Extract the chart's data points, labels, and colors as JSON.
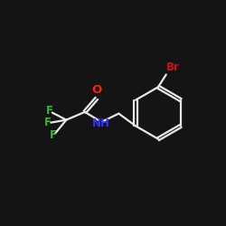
{
  "background_color": "#141414",
  "bond_color": "#e8e8e8",
  "atom_colors": {
    "O": "#ff2200",
    "N": "#3333ff",
    "F": "#33bb33",
    "Br": "#cc1111"
  },
  "figsize": [
    2.5,
    2.5
  ],
  "dpi": 100,
  "xlim": [
    0,
    10
  ],
  "ylim": [
    0,
    10
  ]
}
